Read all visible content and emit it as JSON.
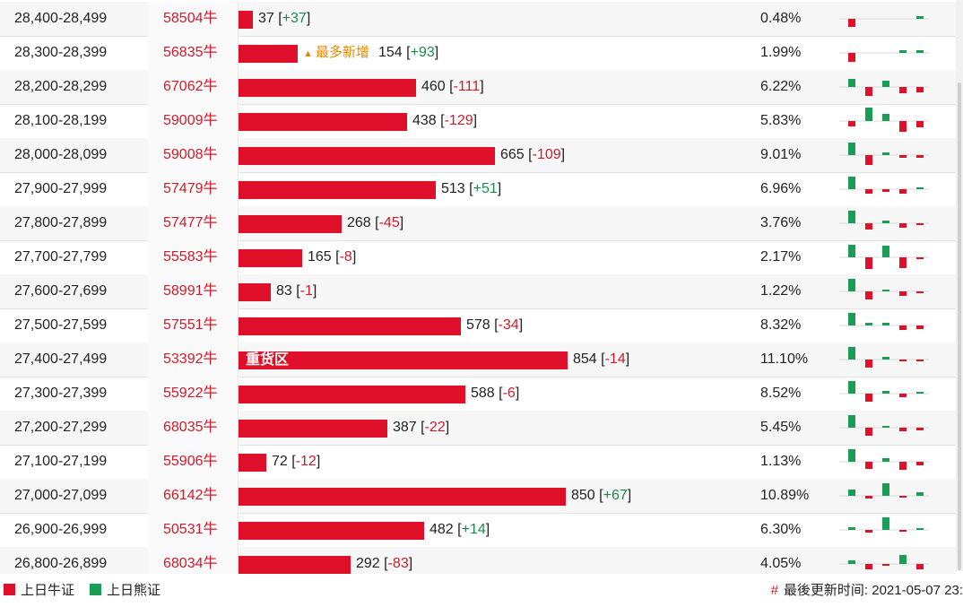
{
  "colors": {
    "bull": "#e0102a",
    "bear": "#1a9e55",
    "code_text": "#d21a2b",
    "tag_orange": "#e58a00"
  },
  "max_value": 854,
  "rows": [
    {
      "range": "28,400-28,499",
      "code": "58504牛",
      "value": 37,
      "value_text": "37",
      "change": "+37",
      "pct": "0.48%",
      "tag": "",
      "bar_label": "",
      "mini": [
        -0.55,
        0,
        0,
        0,
        0.15
      ]
    },
    {
      "range": "28,300-28,399",
      "code": "56835牛",
      "value": 154,
      "value_text": "154",
      "change": "+93",
      "pct": "1.99%",
      "tag": "最多新增",
      "bar_label": "",
      "mini": [
        -0.6,
        0,
        0,
        0.2,
        0.2
      ]
    },
    {
      "range": "28,200-28,299",
      "code": "67062牛",
      "value": 460,
      "value_text": "460",
      "change": "-111",
      "pct": "6.22%",
      "tag": "",
      "bar_label": "",
      "mini": [
        0.5,
        -0.6,
        0.4,
        -0.4,
        -0.35
      ]
    },
    {
      "range": "28,100-28,199",
      "code": "59009牛",
      "value": 438,
      "value_text": "438",
      "change": "-129",
      "pct": "5.83%",
      "tag": "",
      "bar_label": "",
      "mini": [
        -0.35,
        0.9,
        0.45,
        -0.7,
        -0.4
      ]
    },
    {
      "range": "28,000-28,099",
      "code": "59008牛",
      "value": 665,
      "value_text": "665",
      "change": "-109",
      "pct": "9.01%",
      "tag": "",
      "bar_label": "",
      "mini": [
        0.85,
        -0.65,
        0.15,
        -0.2,
        -0.2
      ]
    },
    {
      "range": "27,900-27,999",
      "code": "57479牛",
      "value": 513,
      "value_text": "513",
      "change": "+51",
      "pct": "6.96%",
      "tag": "",
      "bar_label": "",
      "mini": [
        0.85,
        -0.3,
        -0.15,
        -0.3,
        0.1
      ]
    },
    {
      "range": "27,800-27,899",
      "code": "57477牛",
      "value": 268,
      "value_text": "268",
      "change": "-45",
      "pct": "3.76%",
      "tag": "",
      "bar_label": "",
      "mini": [
        0.8,
        -0.4,
        0.2,
        -0.3,
        -0.08
      ]
    },
    {
      "range": "27,700-27,799",
      "code": "55583牛",
      "value": 165,
      "value_text": "165",
      "change": "-8",
      "pct": "2.17%",
      "tag": "",
      "bar_label": "",
      "mini": [
        0.8,
        -0.75,
        0.75,
        -0.7,
        -0.05
      ]
    },
    {
      "range": "27,600-27,699",
      "code": "58991牛",
      "value": 83,
      "value_text": "83",
      "change": "-1",
      "pct": "1.22%",
      "tag": "",
      "bar_label": "",
      "mini": [
        0.8,
        -0.5,
        0.1,
        -0.3,
        -0.05
      ]
    },
    {
      "range": "27,500-27,599",
      "code": "57551牛",
      "value": 578,
      "value_text": "578",
      "change": "-34",
      "pct": "8.32%",
      "tag": "",
      "bar_label": "",
      "mini": [
        0.85,
        0.15,
        0.15,
        -0.3,
        -0.25
      ]
    },
    {
      "range": "27,400-27,499",
      "code": "53392牛",
      "value": 854,
      "value_text": "854",
      "change": "-14",
      "pct": "11.10%",
      "tag": "",
      "bar_label": "重货区",
      "mini": [
        0.85,
        -0.5,
        0.2,
        -0.1,
        -0.08
      ]
    },
    {
      "range": "27,300-27,399",
      "code": "55922牛",
      "value": 588,
      "value_text": "588",
      "change": "-6",
      "pct": "8.52%",
      "tag": "",
      "bar_label": "",
      "mini": [
        0.85,
        -0.55,
        0.2,
        -0.25,
        0.05
      ]
    },
    {
      "range": "27,200-27,299",
      "code": "68035牛",
      "value": 387,
      "value_text": "387",
      "change": "-22",
      "pct": "5.45%",
      "tag": "",
      "bar_label": "",
      "mini": [
        0.85,
        -0.55,
        0.1,
        -0.25,
        -0.2
      ]
    },
    {
      "range": "27,100-27,199",
      "code": "55906牛",
      "value": 72,
      "value_text": "72",
      "change": "-12",
      "pct": "1.13%",
      "tag": "",
      "bar_label": "",
      "mini": [
        0.85,
        -0.45,
        0.25,
        -0.55,
        -0.25
      ]
    },
    {
      "range": "27,000-27,099",
      "code": "66142牛",
      "value": 850,
      "value_text": "850",
      "change": "+67",
      "pct": "10.89%",
      "tag": "",
      "bar_label": "",
      "mini": [
        0.4,
        -0.2,
        0.85,
        -0.05,
        0.25
      ]
    },
    {
      "range": "26,900-26,999",
      "code": "50531牛",
      "value": 482,
      "value_text": "482",
      "change": "+14",
      "pct": "6.30%",
      "tag": "",
      "bar_label": "",
      "mini": [
        0.2,
        -0.15,
        0.85,
        -0.05,
        0.08
      ]
    },
    {
      "range": "26,800-26,899",
      "code": "68034牛",
      "value": 292,
      "value_text": "292",
      "change": "-83",
      "pct": "4.05%",
      "tag": "",
      "bar_label": "",
      "mini": [
        0.25,
        -0.35,
        -0.1,
        0.6,
        -0.35
      ]
    }
  ],
  "legend": {
    "bull_label": "上日牛证",
    "bear_label": "上日熊证"
  },
  "footer": {
    "hash": "#",
    "update_label": "最後更新时间: 2021-05-07 23:"
  }
}
